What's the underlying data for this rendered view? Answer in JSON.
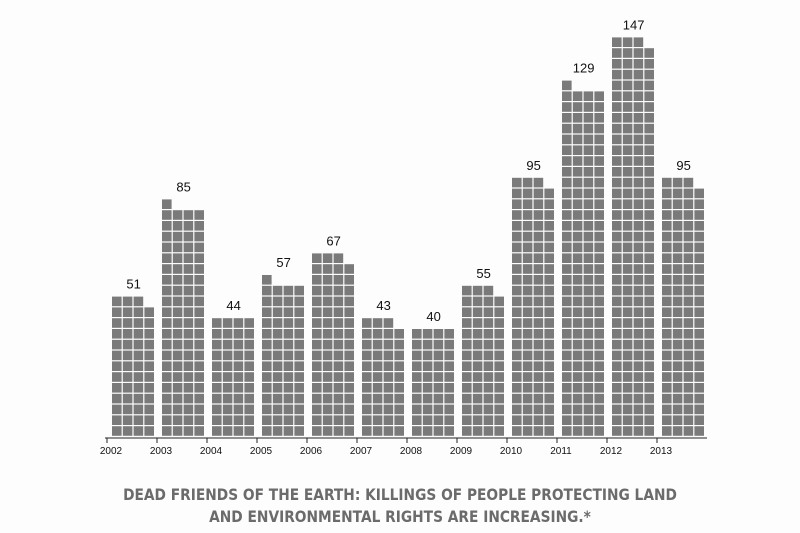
{
  "chart_data": {
    "type": "bar",
    "title": "DEAD FRIENDS OF THE EARTH: KILLINGS OF PEOPLE PROTECTING LAND AND ENVIRONMENTAL RIGHTS ARE INCREASING.*",
    "categories": [
      "2002",
      "2003",
      "2004",
      "2005",
      "2006",
      "2007",
      "2008",
      "2009",
      "2010",
      "2011",
      "2012",
      "2013"
    ],
    "values": [
      51,
      85,
      44,
      57,
      67,
      43,
      40,
      55,
      95,
      129,
      147,
      95
    ],
    "color": "#7a7a7a"
  }
}
